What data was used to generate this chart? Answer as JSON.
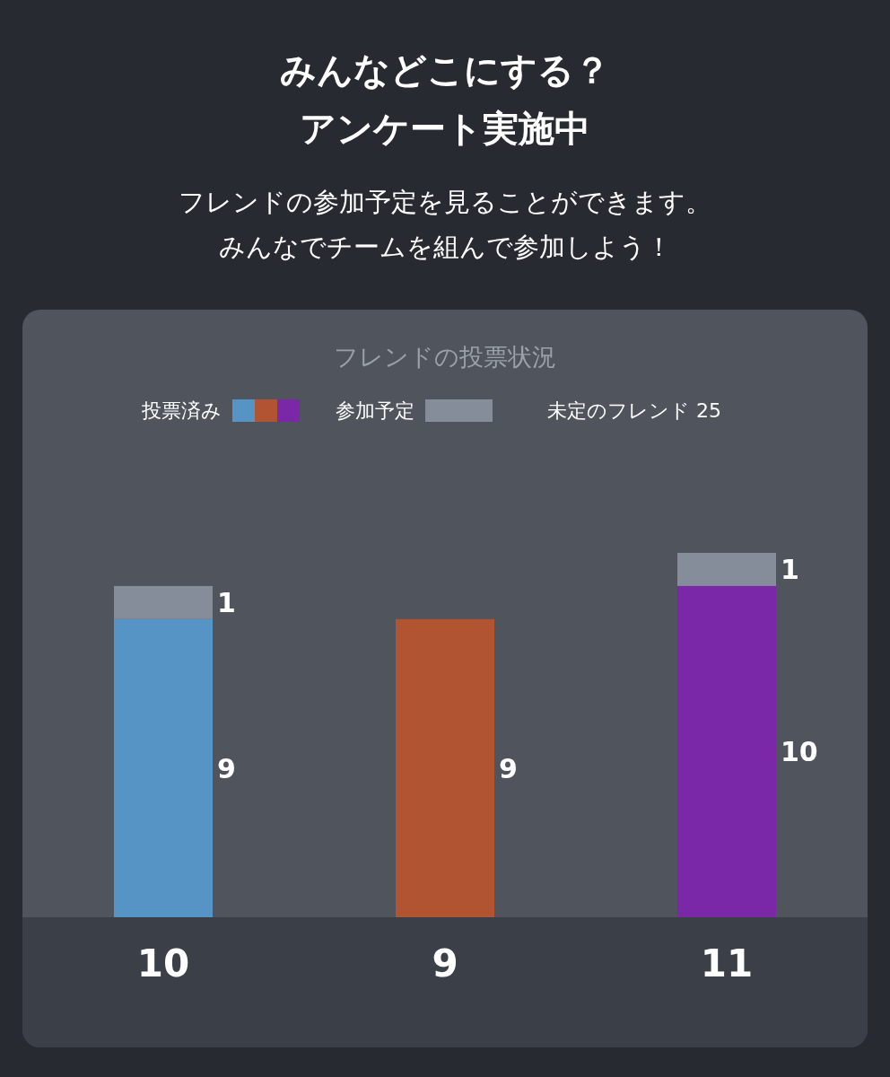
{
  "chart_data": {
    "type": "bar",
    "stacked": true,
    "title": "フレンドの投票状況",
    "categories": [
      null,
      null,
      null
    ],
    "series": [
      {
        "name": "投票済み",
        "colors": [
          "#5594c4",
          "#b05432",
          "#7a27a8"
        ],
        "values": [
          9,
          9,
          10
        ],
        "value_labels": [
          "9",
          "9",
          "10"
        ]
      },
      {
        "name": "参加予定",
        "color": "#858c9a",
        "values": [
          1,
          0,
          1
        ],
        "value_labels": [
          "1",
          null,
          "1"
        ]
      }
    ],
    "totals": [
      "10",
      "9",
      "11"
    ],
    "legend": "top",
    "annotations": [
      "みんなどこにする？",
      "アンケート実施中",
      "フレンドの参加予定を見ることができます。",
      "みんなでチームを組んで参加しよう！",
      "未定のフレンド  25"
    ]
  }
}
